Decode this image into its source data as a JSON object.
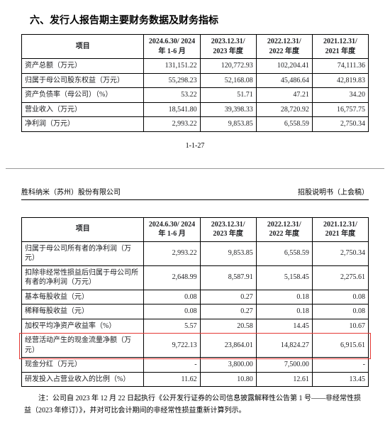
{
  "section_title": "六、发行人报告期主要财务数据及财务指标",
  "periods": [
    "2024.6.30/\n2024 年 1-6 月",
    "2023.12.31/\n2023 年度",
    "2022.12.31/\n2022 年度",
    "2021.12.31/\n2021 年度"
  ],
  "col_item_header": "项目",
  "table1": {
    "rows": [
      {
        "label": "资产总额（万元）",
        "v": [
          "131,151.22",
          "120,772.93",
          "102,204.41",
          "74,111.36"
        ]
      },
      {
        "label": "归属于母公司股东权益（万元）",
        "v": [
          "55,298.23",
          "52,168.08",
          "45,486.64",
          "42,819.83"
        ]
      },
      {
        "label": "资产负债率（母公司）（%）",
        "v": [
          "53.22",
          "51.71",
          "47.21",
          "34.20"
        ]
      },
      {
        "label": "营业收入（万元）",
        "v": [
          "18,541.80",
          "39,398.33",
          "28,720.92",
          "16,757.75"
        ]
      },
      {
        "label": "净利润（万元）",
        "v": [
          "2,993.22",
          "9,853.85",
          "6,558.59",
          "2,750.34"
        ]
      }
    ]
  },
  "page_number": "1-1-27",
  "company_name": "胜科纳米（苏州）股份有限公司",
  "doc_title": "招股说明书（上会稿）",
  "table2": {
    "rows": [
      {
        "label": "归属于母公司所有者的净利润（万元）",
        "v": [
          "2,993.22",
          "9,853.85",
          "6,558.59",
          "2,750.34"
        ]
      },
      {
        "label": "扣除非经常性损益后归属于母公司所有者的净利润（万元）",
        "v": [
          "2,648.99",
          "8,587.91",
          "5,158.45",
          "2,275.61"
        ]
      },
      {
        "label": "基本每股收益（元）",
        "v": [
          "0.08",
          "0.27",
          "0.18",
          "0.08"
        ]
      },
      {
        "label": "稀释每股收益（元）",
        "v": [
          "0.08",
          "0.27",
          "0.18",
          "0.08"
        ]
      },
      {
        "label": "加权平均净资产收益率（%）",
        "v": [
          "5.57",
          "20.58",
          "14.45",
          "10.67"
        ]
      },
      {
        "label": "经营活动产生的现金流量净额（万元）",
        "highlight": true,
        "v": [
          "9,722.13",
          "23,864.01",
          "14,824.27",
          "6,915.61"
        ]
      },
      {
        "label": "现金分红（万元）",
        "v": [
          "-",
          "3,800.00",
          "7,500.00",
          "-"
        ]
      },
      {
        "label": "研发投入占营业收入的比例（%）",
        "v": [
          "11.62",
          "10.80",
          "12.61",
          "13.45"
        ]
      }
    ]
  },
  "footnote": "注：公司自 2023 年 12 月 22 日起执行《公开发行证券的公司信息披露解释性公告第 1 号——非经常性损益（2023 年修订）》，并对可比会计期间的非经常性损益重新计算列示。",
  "style": {
    "highlight_border_color": "#e53935",
    "border_color": "#000000",
    "background": "#ffffff",
    "font_size_table": 10,
    "font_size_title": 14
  }
}
